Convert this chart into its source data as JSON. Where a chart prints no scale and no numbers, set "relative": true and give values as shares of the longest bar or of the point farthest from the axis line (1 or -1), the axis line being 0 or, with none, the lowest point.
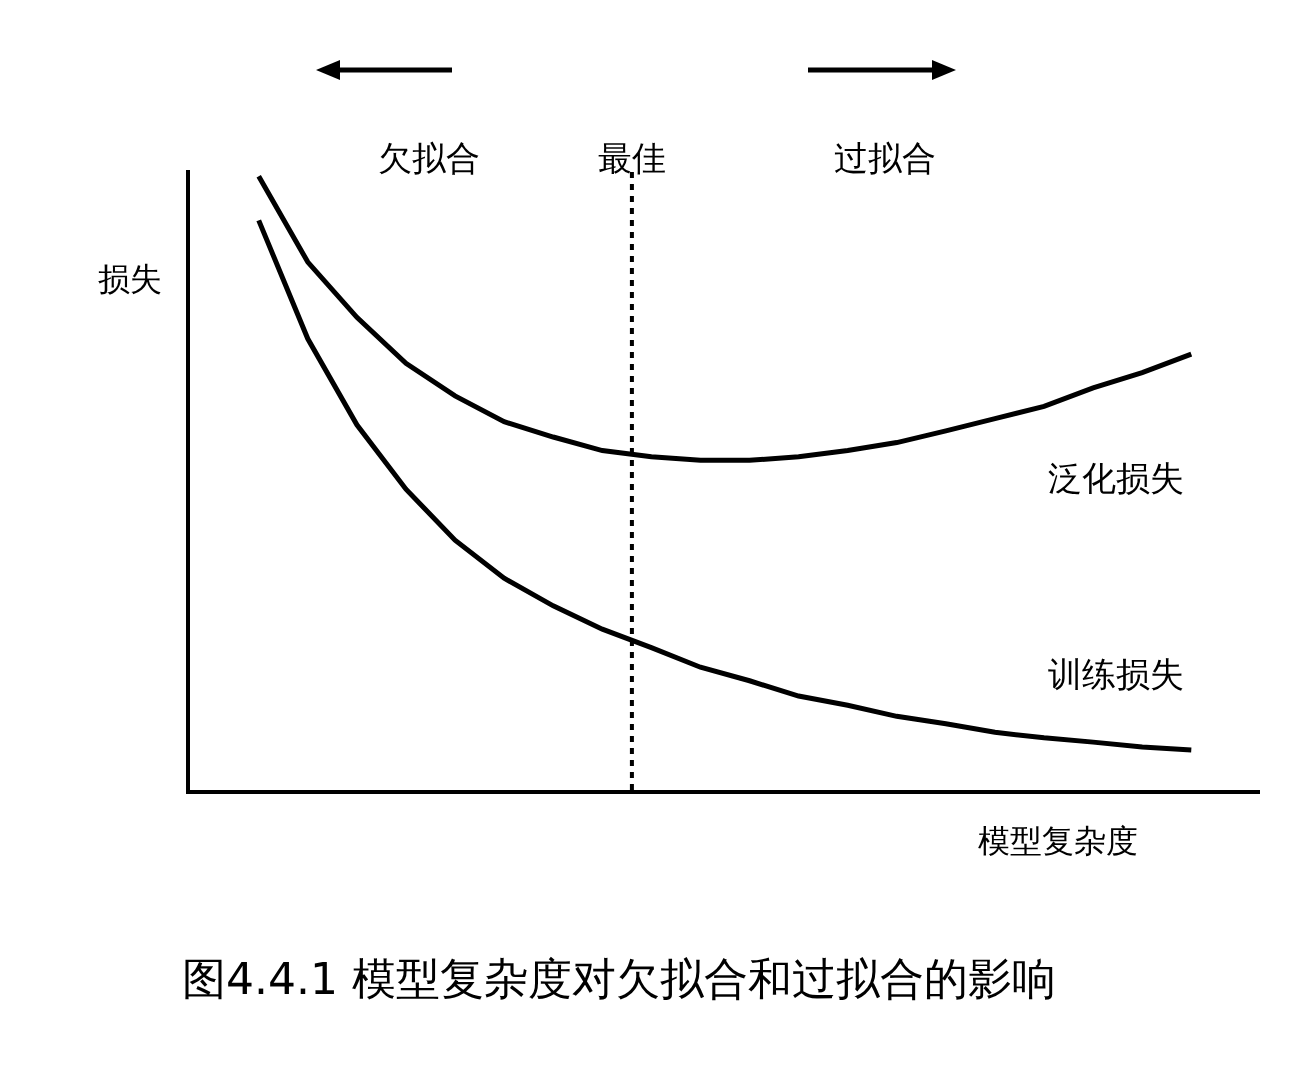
{
  "chart_data": {
    "type": "line",
    "relative": true,
    "title": "图4.4.1 模型复杂度对欠拟合和过拟合的影响",
    "xlabel": "模型复杂度",
    "ylabel": "损失",
    "categories": [
      null,
      null,
      null,
      null,
      null,
      null,
      null,
      null,
      null,
      null,
      null,
      null,
      null,
      null,
      null,
      null,
      null,
      null,
      null,
      null
    ],
    "series": [
      {
        "name": "泛化损失",
        "color": "#000000",
        "values": [
          1,
          0.86,
          0.77,
          0.695,
          0.642,
          0.6,
          0.575,
          0.553,
          0.543,
          0.537,
          0.537,
          0.543,
          0.553,
          0.566,
          0.585,
          0.605,
          0.625,
          0.655,
          0.68,
          0.71
        ]
      },
      {
        "name": "训练损失",
        "color": "#000000",
        "values": [
          0.928,
          0.735,
          0.595,
          0.49,
          0.407,
          0.345,
          0.3,
          0.262,
          0.232,
          0.2,
          0.178,
          0.153,
          0.138,
          0.12,
          0.108,
          0.094,
          0.085,
          0.078,
          0.07,
          0.065
        ]
      }
    ],
    "annotations": [
      "欠拟合",
      "最佳",
      "过拟合"
    ],
    "grid": false,
    "legend": false,
    "marker": "none",
    "line_style": "solid"
  }
}
